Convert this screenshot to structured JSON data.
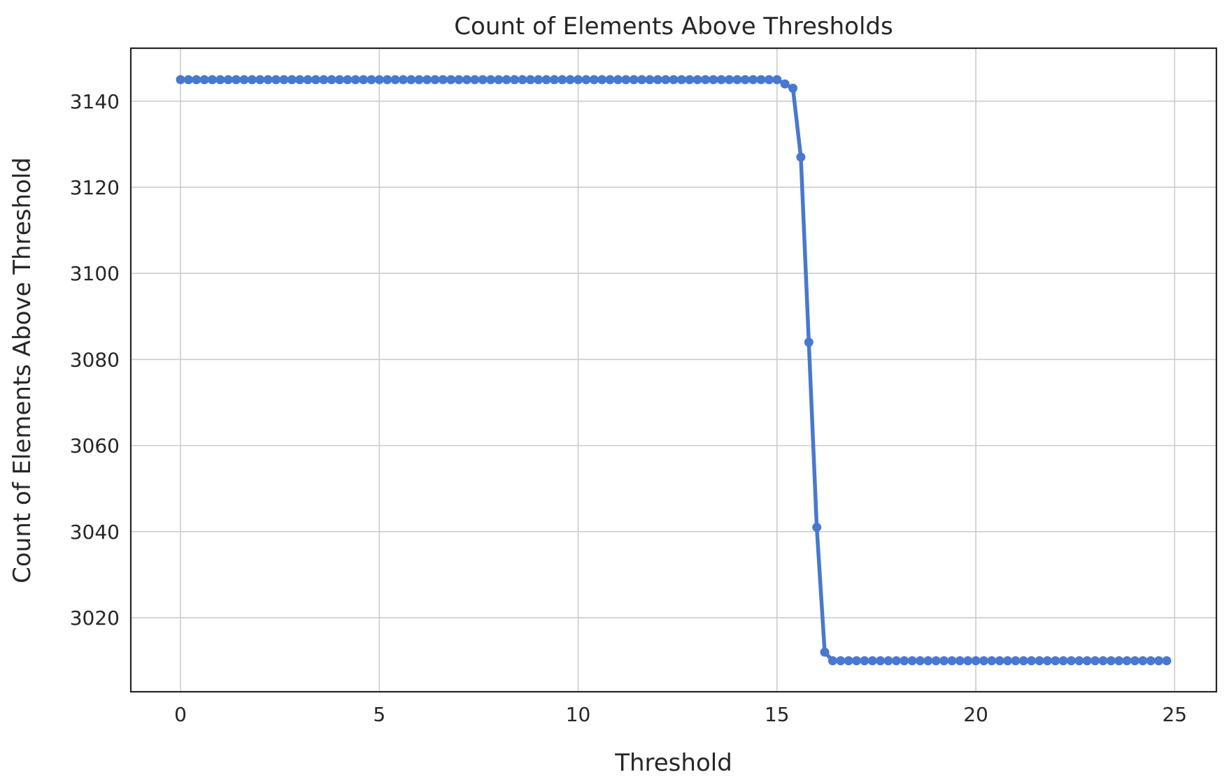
{
  "chart_data": {
    "type": "line",
    "title": "Count of Elements Above Thresholds",
    "xlabel": "Threshold",
    "ylabel": "Count of Elements Above Threshold",
    "xlim": [
      -1.25,
      26.05
    ],
    "ylim": [
      3002.8,
      3152.3
    ],
    "xticks": [
      0,
      5,
      10,
      15,
      20,
      25
    ],
    "yticks": [
      3020,
      3040,
      3060,
      3080,
      3100,
      3120,
      3140
    ],
    "grid": true,
    "legend": "none",
    "color": "#4878cf",
    "series": [
      {
        "marker": "circle",
        "x": [
          0.0,
          0.2,
          0.4,
          0.6,
          0.8,
          1.0,
          1.2,
          1.4,
          1.6,
          1.8,
          2.0,
          2.2,
          2.4,
          2.6,
          2.8,
          3.0,
          3.2,
          3.4,
          3.6,
          3.8,
          4.0,
          4.2,
          4.4,
          4.6,
          4.8,
          5.0,
          5.2,
          5.4,
          5.6,
          5.8,
          6.0,
          6.2,
          6.4,
          6.6,
          6.8,
          7.0,
          7.2,
          7.4,
          7.6,
          7.8,
          8.0,
          8.2,
          8.4,
          8.6,
          8.8,
          9.0,
          9.2,
          9.4,
          9.6,
          9.8,
          10.0,
          10.2,
          10.4,
          10.6,
          10.8,
          11.0,
          11.2,
          11.4,
          11.6,
          11.8,
          12.0,
          12.2,
          12.4,
          12.6,
          12.8,
          13.0,
          13.2,
          13.4,
          13.6,
          13.8,
          14.0,
          14.2,
          14.4,
          14.6,
          14.8,
          15.0,
          15.2,
          15.4,
          15.6,
          15.8,
          16.0,
          16.2,
          16.4,
          16.6,
          16.8,
          17.0,
          17.2,
          17.4,
          17.6,
          17.8,
          18.0,
          18.2,
          18.4,
          18.6,
          18.8,
          19.0,
          19.2,
          19.4,
          19.6,
          19.8,
          20.0,
          20.2,
          20.4,
          20.6,
          20.8,
          21.0,
          21.2,
          21.4,
          21.6,
          21.8,
          22.0,
          22.2,
          22.4,
          22.6,
          22.8,
          23.0,
          23.2,
          23.4,
          23.6,
          23.8,
          24.0,
          24.2,
          24.4,
          24.6,
          24.8
        ],
        "y": [
          3145,
          3145,
          3145,
          3145,
          3145,
          3145,
          3145,
          3145,
          3145,
          3145,
          3145,
          3145,
          3145,
          3145,
          3145,
          3145,
          3145,
          3145,
          3145,
          3145,
          3145,
          3145,
          3145,
          3145,
          3145,
          3145,
          3145,
          3145,
          3145,
          3145,
          3145,
          3145,
          3145,
          3145,
          3145,
          3145,
          3145,
          3145,
          3145,
          3145,
          3145,
          3145,
          3145,
          3145,
          3145,
          3145,
          3145,
          3145,
          3145,
          3145,
          3145,
          3145,
          3145,
          3145,
          3145,
          3145,
          3145,
          3145,
          3145,
          3145,
          3145,
          3145,
          3145,
          3145,
          3145,
          3145,
          3145,
          3145,
          3145,
          3145,
          3145,
          3145,
          3145,
          3145,
          3145,
          3145,
          3144,
          3143,
          3127,
          3084,
          3041,
          3012,
          3010,
          3010,
          3010,
          3010,
          3010,
          3010,
          3010,
          3010,
          3010,
          3010,
          3010,
          3010,
          3010,
          3010,
          3010,
          3010,
          3010,
          3010,
          3010,
          3010,
          3010,
          3010,
          3010,
          3010,
          3010,
          3010,
          3010,
          3010,
          3010,
          3010,
          3010,
          3010,
          3010,
          3010,
          3010,
          3010,
          3010,
          3010,
          3010,
          3010,
          3010,
          3010,
          3010
        ]
      }
    ]
  }
}
